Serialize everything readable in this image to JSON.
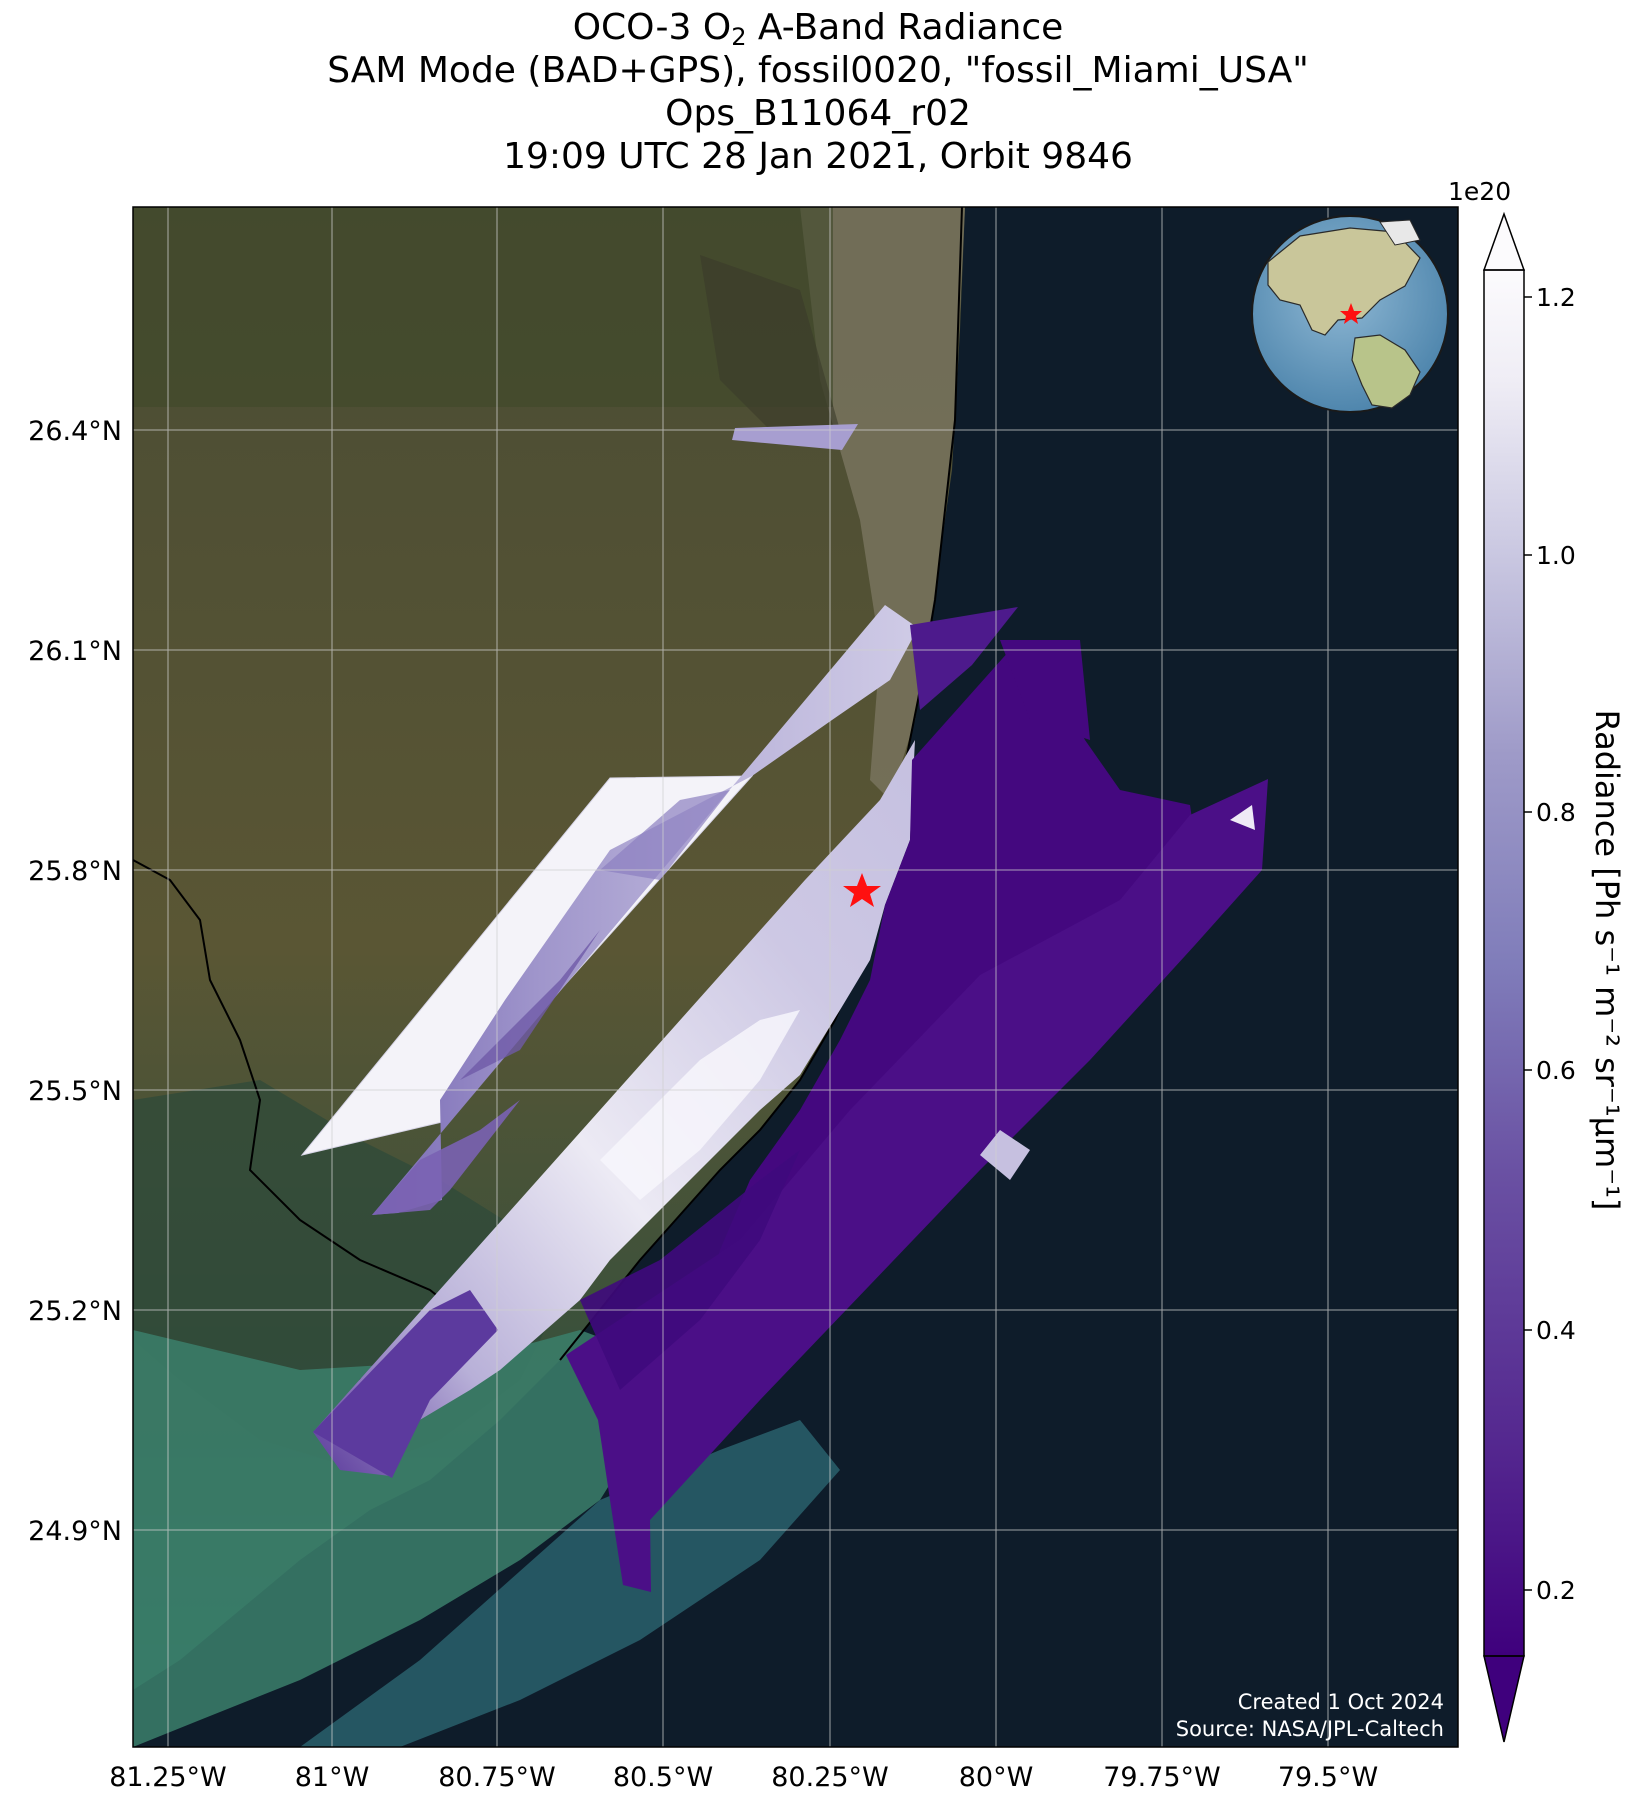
{
  "title": {
    "line1_prefix": "OCO-3 O",
    "line1_sub": "2",
    "line1_suffix": " A-Band Radiance",
    "line2": "SAM Mode (BAD+GPS), fossil0020, \"fossil_Miami_USA\"",
    "line3": "Ops_B11064_r02",
    "line4": "19:09 UTC 28 Jan 2021, Orbit 9846"
  },
  "map": {
    "lon_ticks": [
      "81.25°W",
      "81°W",
      "80.75°W",
      "80.5°W",
      "80.25°W",
      "80°W",
      "79.75°W",
      "79.5°W"
    ],
    "lat_ticks": [
      "26.4°N",
      "26.1°N",
      "25.8°N",
      "25.5°N",
      "25.2°N",
      "24.9°N"
    ],
    "target_marker": "red star (Miami)",
    "inset": "globe with red star marking location",
    "colors": {
      "land": "#5b5a3b",
      "ocean": "#0e1c2a",
      "reef": "#3d8a7a",
      "star": "#ff1010"
    }
  },
  "colorbar": {
    "exponent": "1e20",
    "ticks": [
      "1.2",
      "1.0",
      "0.8",
      "0.6",
      "0.4",
      "0.2"
    ],
    "label": "Radiance [Ph s⁻¹ m⁻² sr⁻¹μm⁻¹]",
    "colormap": "Purples_r",
    "color_low": "#3f007d",
    "color_high": "#fcfbfd"
  },
  "credits": {
    "created": "Created 1 Oct 2024",
    "source": "Source: NASA/JPL-Caltech"
  }
}
